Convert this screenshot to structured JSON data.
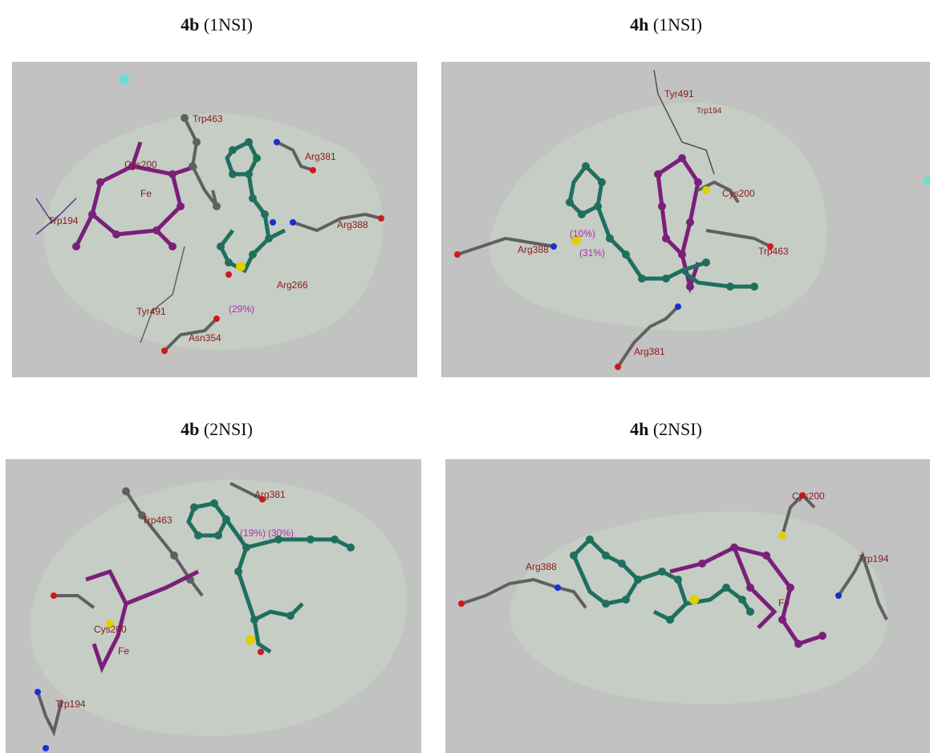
{
  "panels": [
    {
      "id": "p1",
      "title_bold": "4b",
      "title_rest": " (1NSI)",
      "labels": [
        "Trp463",
        "Arg381",
        "Cys200",
        "Fe",
        "Trp194",
        "Arg388",
        "Arg266",
        "Tyr491",
        "(29%)",
        "Asn354"
      ]
    },
    {
      "id": "p2",
      "title_bold": "4h",
      "title_rest": " (1NSI)",
      "labels": [
        "Tyr491",
        "Trp194",
        "Cys200",
        "Arg388",
        "(10%)",
        "(31%)",
        "Trp463",
        "Arg381"
      ]
    },
    {
      "id": "p3",
      "title_bold": "4b",
      "title_rest": " (2NSI)",
      "labels": [
        "Arg381",
        "Trp463",
        "(19%)",
        "(30%)",
        "Cys200",
        "Fe",
        "Trp194"
      ]
    },
    {
      "id": "p4",
      "title_bold": "4h",
      "title_rest": " (2NSI)",
      "labels": [
        "Cys200",
        "Trp194",
        "Arg388",
        "Fe"
      ]
    }
  ],
  "colors": {
    "panel_bg": "#c2c2c2",
    "ligand": "#1f6f5f",
    "heme": "#7b1f7b",
    "carbon": "#606060",
    "nitrogen": "#1a2fd0",
    "oxygen": "#d01a1a",
    "sulfur": "#e0d000",
    "label": "#8b1a1a",
    "interaction": "#b02cb0"
  }
}
